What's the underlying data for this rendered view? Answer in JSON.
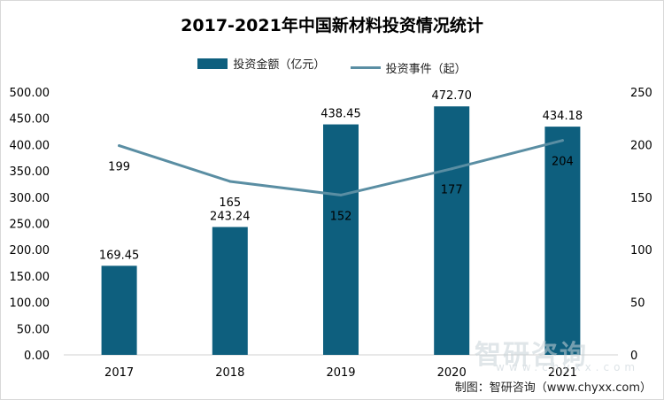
{
  "title": "2017-2021年中国新材料投资情况统计",
  "source": "制图：智研咨询（www.chyxx.com）",
  "watermark": "智研咨询",
  "watermark_url": "www.chyxx.com",
  "colors": {
    "bar": "#0e5f7e",
    "line": "#5a8ea3"
  },
  "chart_data": {
    "type": "bar",
    "title": "2017-2021年中国新材料投资情况统计",
    "categories": [
      "2017",
      "2018",
      "2019",
      "2020",
      "2021"
    ],
    "series": [
      {
        "name": "投资金额（亿元）",
        "type": "bar",
        "axis": "left",
        "values": [
          169.45,
          243.24,
          438.45,
          472.7,
          434.18
        ],
        "labels": [
          "169.45",
          "243.24",
          "438.45",
          "472.70",
          "434.18"
        ]
      },
      {
        "name": "投资事件（起）",
        "type": "line",
        "axis": "right",
        "values": [
          199,
          165,
          152,
          177,
          204
        ],
        "labels": [
          "199",
          "165",
          "152",
          "177",
          "204"
        ]
      }
    ],
    "y_left": {
      "range": [
        0,
        500
      ],
      "ticks": [
        "0.00",
        "50.00",
        "100.00",
        "150.00",
        "200.00",
        "250.00",
        "300.00",
        "350.00",
        "400.00",
        "450.00",
        "500.00"
      ]
    },
    "y_right": {
      "range": [
        0,
        250
      ],
      "ticks": [
        "0",
        "50",
        "100",
        "150",
        "200",
        "250"
      ]
    },
    "grid": false,
    "legend": "top"
  }
}
